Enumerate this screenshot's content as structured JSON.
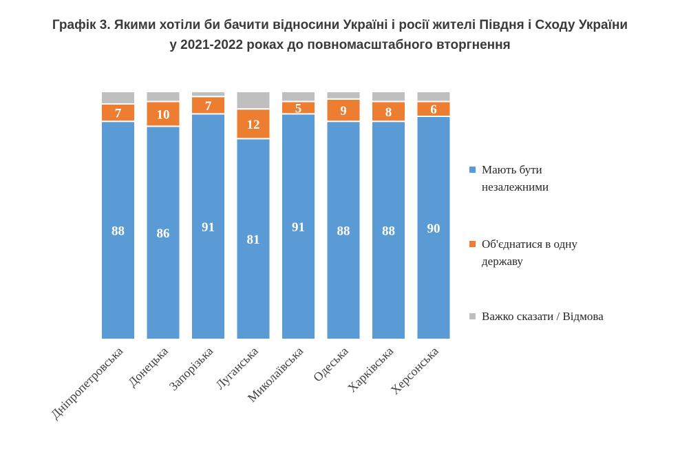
{
  "title": {
    "line1": "Графік 3. Якими хотіли би бачити відносини Україні і росії жителі Півдня і Сходу України",
    "line2": "у 2021-2022 роках до повномасштабного вторгнення"
  },
  "legend": {
    "placement": "right",
    "items": [
      {
        "label": "Мають бути незалежними",
        "color": "#5b9bd5"
      },
      {
        "label": "Об'єднатися в одну державу",
        "color": "#ed7d31"
      },
      {
        "label": "Важко сказати / Відмова",
        "color": "#bfbfbf"
      }
    ]
  },
  "chart_data": {
    "type": "bar",
    "stacked": true,
    "categories": [
      "Дніпропетровська",
      "Донецька",
      "Запорізька",
      "Луганська",
      "Миколаївська",
      "Одеська",
      "Харківська",
      "Херсонська"
    ],
    "series": [
      {
        "name": "Мають бути незалежними",
        "values": [
          88,
          86,
          91,
          81,
          91,
          88,
          88,
          90
        ],
        "color": "#5b9bd5",
        "labeled": true
      },
      {
        "name": "Об'єднатися в одну державу",
        "values": [
          7,
          10,
          7,
          12,
          5,
          9,
          8,
          6
        ],
        "color": "#ed7d31",
        "labeled": true
      },
      {
        "name": "Важко сказати / Відмова",
        "values": [
          5,
          4,
          2,
          7,
          4,
          3,
          4,
          4
        ],
        "color": "#bfbfbf",
        "labeled": false
      }
    ],
    "ylim": [
      0,
      100
    ],
    "grid": false,
    "legend_position": "right"
  }
}
